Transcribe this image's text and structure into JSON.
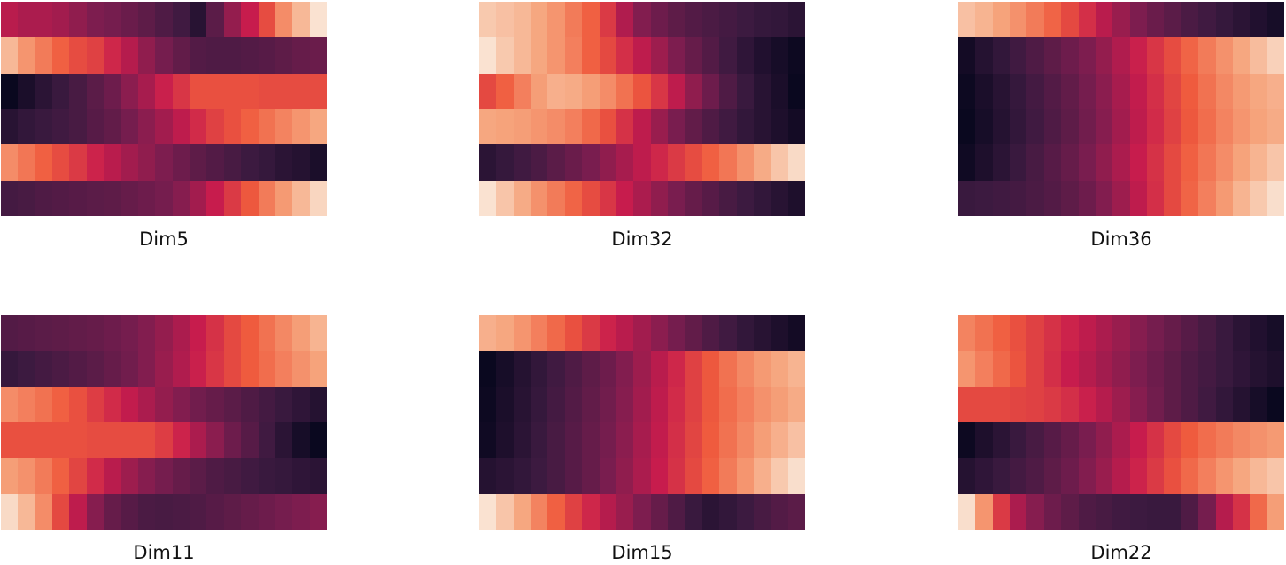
{
  "colormap": [
    "#03051a",
    "#3b1a40",
    "#7a1d4f",
    "#c71c4d",
    "#ef5a3d",
    "#f6a47c",
    "#faebdd"
  ],
  "chart_data": [
    {
      "type": "heatmap",
      "caption": "Dim5",
      "rows": [
        [
          0.47,
          0.44,
          0.44,
          0.42,
          0.38,
          0.34,
          0.32,
          0.29,
          0.26,
          0.22,
          0.18,
          0.11,
          0.25,
          0.39,
          0.5,
          0.63,
          0.78,
          0.88,
          0.98
        ],
        [
          0.88,
          0.8,
          0.74,
          0.68,
          0.63,
          0.6,
          0.53,
          0.46,
          0.38,
          0.32,
          0.27,
          0.23,
          0.22,
          0.22,
          0.23,
          0.24,
          0.26,
          0.28,
          0.29
        ],
        [
          0.02,
          0.07,
          0.12,
          0.16,
          0.2,
          0.25,
          0.3,
          0.37,
          0.43,
          0.51,
          0.57,
          0.64,
          0.64,
          0.64,
          0.64,
          0.63,
          0.63,
          0.63,
          0.63
        ],
        [
          0.11,
          0.14,
          0.16,
          0.18,
          0.2,
          0.24,
          0.27,
          0.32,
          0.37,
          0.42,
          0.48,
          0.54,
          0.6,
          0.64,
          0.68,
          0.72,
          0.76,
          0.8,
          0.84
        ],
        [
          0.78,
          0.73,
          0.68,
          0.63,
          0.58,
          0.52,
          0.47,
          0.42,
          0.38,
          0.34,
          0.3,
          0.26,
          0.23,
          0.2,
          0.17,
          0.15,
          0.12,
          0.1,
          0.07
        ],
        [
          0.19,
          0.2,
          0.22,
          0.23,
          0.24,
          0.25,
          0.26,
          0.28,
          0.3,
          0.32,
          0.36,
          0.42,
          0.5,
          0.58,
          0.66,
          0.74,
          0.81,
          0.88,
          0.95
        ]
      ]
    },
    {
      "type": "heatmap",
      "caption": "Dim32",
      "rows": [
        [
          0.92,
          0.9,
          0.88,
          0.84,
          0.8,
          0.74,
          0.68,
          0.58,
          0.45,
          0.35,
          0.3,
          0.26,
          0.23,
          0.21,
          0.19,
          0.17,
          0.15,
          0.14,
          0.12
        ],
        [
          0.98,
          0.92,
          0.88,
          0.84,
          0.8,
          0.75,
          0.68,
          0.62,
          0.55,
          0.48,
          0.41,
          0.34,
          0.28,
          0.23,
          0.18,
          0.13,
          0.09,
          0.06,
          0.03
        ],
        [
          0.62,
          0.68,
          0.75,
          0.82,
          0.86,
          0.85,
          0.82,
          0.78,
          0.72,
          0.65,
          0.57,
          0.48,
          0.38,
          0.3,
          0.22,
          0.16,
          0.11,
          0.07,
          0.02
        ],
        [
          0.84,
          0.83,
          0.82,
          0.8,
          0.78,
          0.75,
          0.7,
          0.64,
          0.56,
          0.48,
          0.4,
          0.33,
          0.27,
          0.22,
          0.18,
          0.14,
          0.11,
          0.08,
          0.05
        ],
        [
          0.12,
          0.15,
          0.18,
          0.21,
          0.25,
          0.29,
          0.33,
          0.38,
          0.43,
          0.48,
          0.53,
          0.58,
          0.63,
          0.68,
          0.73,
          0.79,
          0.85,
          0.91,
          0.96
        ],
        [
          0.98,
          0.91,
          0.85,
          0.79,
          0.74,
          0.69,
          0.63,
          0.57,
          0.5,
          0.44,
          0.38,
          0.33,
          0.28,
          0.24,
          0.2,
          0.17,
          0.14,
          0.11,
          0.08
        ]
      ]
    },
    {
      "type": "heatmap",
      "caption": "Dim36",
      "rows": [
        [
          0.9,
          0.87,
          0.83,
          0.79,
          0.74,
          0.69,
          0.62,
          0.55,
          0.47,
          0.4,
          0.34,
          0.29,
          0.25,
          0.21,
          0.18,
          0.15,
          0.12,
          0.09,
          0.06
        ],
        [
          0.05,
          0.1,
          0.14,
          0.18,
          0.22,
          0.26,
          0.3,
          0.34,
          0.39,
          0.45,
          0.51,
          0.57,
          0.63,
          0.69,
          0.74,
          0.79,
          0.84,
          0.89,
          0.94
        ],
        [
          0.03,
          0.07,
          0.11,
          0.15,
          0.19,
          0.23,
          0.27,
          0.32,
          0.37,
          0.43,
          0.49,
          0.55,
          0.61,
          0.67,
          0.72,
          0.77,
          0.81,
          0.84,
          0.86
        ],
        [
          0.02,
          0.06,
          0.1,
          0.14,
          0.18,
          0.22,
          0.26,
          0.31,
          0.36,
          0.42,
          0.48,
          0.54,
          0.6,
          0.66,
          0.71,
          0.76,
          0.8,
          0.83,
          0.85
        ],
        [
          0.04,
          0.08,
          0.12,
          0.16,
          0.2,
          0.24,
          0.28,
          0.33,
          0.38,
          0.44,
          0.5,
          0.56,
          0.62,
          0.68,
          0.73,
          0.78,
          0.83,
          0.87,
          0.91
        ],
        [
          0.16,
          0.17,
          0.18,
          0.19,
          0.21,
          0.23,
          0.26,
          0.3,
          0.35,
          0.41,
          0.48,
          0.55,
          0.62,
          0.69,
          0.75,
          0.81,
          0.87,
          0.92,
          0.97
        ]
      ]
    },
    {
      "type": "heatmap",
      "caption": "Dim11",
      "rows": [
        [
          0.23,
          0.24,
          0.25,
          0.26,
          0.27,
          0.28,
          0.3,
          0.32,
          0.35,
          0.39,
          0.44,
          0.5,
          0.56,
          0.62,
          0.67,
          0.72,
          0.77,
          0.82,
          0.87
        ],
        [
          0.15,
          0.17,
          0.19,
          0.21,
          0.23,
          0.25,
          0.28,
          0.31,
          0.35,
          0.4,
          0.45,
          0.51,
          0.57,
          0.62,
          0.67,
          0.71,
          0.75,
          0.79,
          0.83
        ],
        [
          0.78,
          0.75,
          0.72,
          0.68,
          0.64,
          0.59,
          0.54,
          0.49,
          0.44,
          0.39,
          0.35,
          0.31,
          0.28,
          0.25,
          0.22,
          0.19,
          0.16,
          0.13,
          0.1
        ],
        [
          0.64,
          0.64,
          0.64,
          0.64,
          0.64,
          0.63,
          0.63,
          0.63,
          0.63,
          0.59,
          0.52,
          0.44,
          0.37,
          0.3,
          0.24,
          0.18,
          0.12,
          0.06,
          0.02
        ],
        [
          0.82,
          0.79,
          0.74,
          0.68,
          0.61,
          0.54,
          0.47,
          0.41,
          0.36,
          0.32,
          0.28,
          0.25,
          0.22,
          0.2,
          0.18,
          0.16,
          0.15,
          0.13,
          0.12
        ],
        [
          0.96,
          0.88,
          0.78,
          0.62,
          0.48,
          0.36,
          0.28,
          0.24,
          0.21,
          0.2,
          0.21,
          0.22,
          0.24,
          0.26,
          0.28,
          0.3,
          0.32,
          0.34,
          0.36
        ]
      ]
    },
    {
      "type": "heatmap",
      "caption": "Dim15",
      "rows": [
        [
          0.86,
          0.84,
          0.8,
          0.75,
          0.7,
          0.64,
          0.58,
          0.52,
          0.47,
          0.42,
          0.37,
          0.32,
          0.27,
          0.22,
          0.18,
          0.14,
          0.11,
          0.08,
          0.05
        ],
        [
          0.02,
          0.06,
          0.1,
          0.14,
          0.18,
          0.22,
          0.26,
          0.3,
          0.35,
          0.41,
          0.47,
          0.53,
          0.6,
          0.66,
          0.72,
          0.77,
          0.81,
          0.84,
          0.87
        ],
        [
          0.03,
          0.07,
          0.11,
          0.15,
          0.19,
          0.23,
          0.27,
          0.31,
          0.36,
          0.42,
          0.48,
          0.54,
          0.6,
          0.66,
          0.71,
          0.75,
          0.79,
          0.82,
          0.85
        ],
        [
          0.04,
          0.08,
          0.12,
          0.16,
          0.2,
          0.24,
          0.28,
          0.32,
          0.37,
          0.43,
          0.49,
          0.55,
          0.61,
          0.67,
          0.72,
          0.77,
          0.82,
          0.86,
          0.9
        ],
        [
          0.1,
          0.12,
          0.14,
          0.17,
          0.2,
          0.24,
          0.28,
          0.33,
          0.38,
          0.44,
          0.5,
          0.56,
          0.62,
          0.68,
          0.74,
          0.8,
          0.86,
          0.92,
          0.97
        ],
        [
          0.98,
          0.91,
          0.84,
          0.76,
          0.68,
          0.6,
          0.53,
          0.46,
          0.4,
          0.34,
          0.28,
          0.22,
          0.16,
          0.12,
          0.14,
          0.17,
          0.2,
          0.23,
          0.25
        ]
      ]
    },
    {
      "type": "heatmap",
      "caption": "Dim22",
      "rows": [
        [
          0.76,
          0.72,
          0.68,
          0.64,
          0.6,
          0.56,
          0.52,
          0.48,
          0.44,
          0.4,
          0.36,
          0.32,
          0.28,
          0.24,
          0.2,
          0.16,
          0.12,
          0.09,
          0.06
        ],
        [
          0.8,
          0.75,
          0.7,
          0.65,
          0.6,
          0.55,
          0.5,
          0.46,
          0.42,
          0.38,
          0.34,
          0.3,
          0.26,
          0.22,
          0.19,
          0.16,
          0.13,
          0.1,
          0.08
        ],
        [
          0.62,
          0.62,
          0.62,
          0.61,
          0.6,
          0.58,
          0.55,
          0.51,
          0.46,
          0.41,
          0.36,
          0.31,
          0.26,
          0.22,
          0.18,
          0.14,
          0.1,
          0.06,
          0.02
        ],
        [
          0.03,
          0.08,
          0.12,
          0.16,
          0.2,
          0.24,
          0.28,
          0.33,
          0.38,
          0.44,
          0.5,
          0.56,
          0.62,
          0.67,
          0.71,
          0.74,
          0.77,
          0.79,
          0.81
        ],
        [
          0.1,
          0.13,
          0.16,
          0.19,
          0.22,
          0.26,
          0.3,
          0.35,
          0.4,
          0.46,
          0.52,
          0.58,
          0.64,
          0.7,
          0.75,
          0.8,
          0.84,
          0.88,
          0.91
        ],
        [
          0.97,
          0.8,
          0.58,
          0.44,
          0.36,
          0.3,
          0.26,
          0.22,
          0.2,
          0.18,
          0.17,
          0.16,
          0.16,
          0.22,
          0.32,
          0.46,
          0.56,
          0.7,
          0.82
        ]
      ]
    }
  ]
}
